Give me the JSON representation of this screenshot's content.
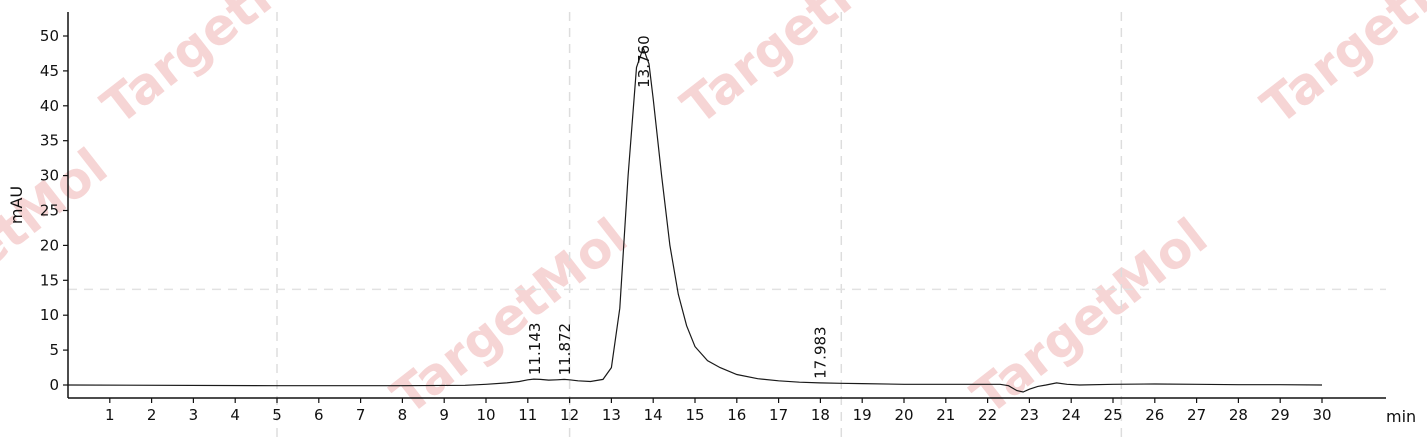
{
  "chart_data": {
    "type": "line",
    "xlabel": "min",
    "ylabel": "mAU",
    "xlim": [
      0,
      30.6
    ],
    "ylim": [
      -1.5,
      52
    ],
    "x_ticks": [
      1,
      2,
      3,
      4,
      5,
      6,
      7,
      8,
      9,
      10,
      11,
      12,
      13,
      14,
      15,
      16,
      17,
      18,
      19,
      20,
      21,
      22,
      23,
      24,
      25,
      26,
      27,
      28,
      29,
      30
    ],
    "y_ticks": [
      0,
      5,
      10,
      15,
      20,
      25,
      30,
      35,
      40,
      45,
      50
    ],
    "grid": "dashed, sparse",
    "series": [
      {
        "x": [
          0,
          5,
          8,
          9.5,
          10,
          10.5,
          10.8,
          11,
          11.143,
          11.3,
          11.5,
          11.7,
          11.872,
          12,
          12.2,
          12.5,
          12.8,
          13.0,
          13.2,
          13.4,
          13.6,
          13.76,
          13.9,
          14.0,
          14.2,
          14.4,
          14.6,
          14.8,
          15.0,
          15.3,
          15.6,
          16.0,
          16.5,
          17.0,
          17.5,
          17.983,
          18.5,
          19,
          20,
          21,
          22,
          22.3,
          22.5,
          22.7,
          22.85,
          23.0,
          23.2,
          23.4,
          23.65,
          23.9,
          24.2,
          25,
          26,
          27,
          28,
          29,
          30
        ],
        "y": [
          0,
          -0.1,
          -0.1,
          -0.05,
          0.1,
          0.3,
          0.5,
          0.75,
          0.85,
          0.8,
          0.7,
          0.75,
          0.8,
          0.75,
          0.6,
          0.5,
          0.8,
          2.5,
          11,
          30,
          45.5,
          48.3,
          46,
          41,
          30,
          20,
          13,
          8.5,
          5.5,
          3.5,
          2.5,
          1.5,
          0.9,
          0.6,
          0.4,
          0.3,
          0.25,
          0.2,
          0.1,
          0.1,
          0.1,
          0.1,
          -0.1,
          -0.8,
          -1.0,
          -0.6,
          -0.2,
          0,
          0.3,
          0.1,
          0,
          0.1,
          0.15,
          0.1,
          0.05,
          0.05,
          0
        ]
      }
    ],
    "peaks": [
      {
        "rt": 11.143,
        "label": "11.143"
      },
      {
        "rt": 11.872,
        "label": "11.872"
      },
      {
        "rt": 13.76,
        "label": "13.760"
      },
      {
        "rt": 17.983,
        "label": "17.983"
      }
    ]
  },
  "watermark": {
    "text": "TargetMol",
    "color": "#f3c7c7"
  }
}
